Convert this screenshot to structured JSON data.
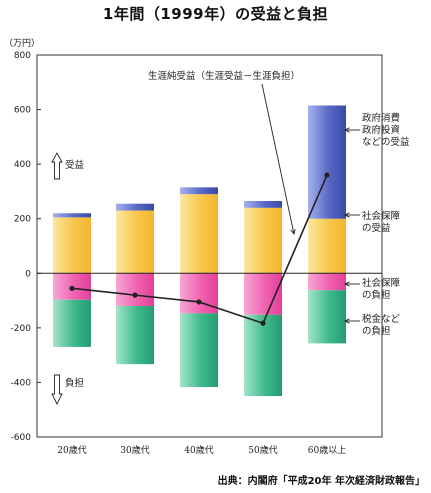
{
  "title": "1年間（1999年）の受益と負担",
  "source": "出典：内閣府「平成20年 年次経済財政報告」",
  "colors": {
    "govt_services": "#f7c64a",
    "social_security_benefit": "#5869c4",
    "social_security_burden": "#f062b0",
    "taxes": "#3fba8d",
    "net_line": "#222222"
  },
  "chart_data": {
    "type": "bar",
    "stacked": true,
    "unit": "（万円）",
    "ylim": [
      -600,
      800
    ],
    "yticks": [
      "800",
      "600",
      "400",
      "200",
      "0",
      "-200",
      "-400",
      "-600"
    ],
    "categories": [
      "20歳代",
      "30歳代",
      "40歳代",
      "50歳代",
      "60歳以上"
    ],
    "series": [
      {
        "name": "政府消費 政府投資 などの受益",
        "values": [
          205,
          230,
          290,
          240,
          200
        ]
      },
      {
        "name": "社会保障 の受益",
        "values": [
          15,
          25,
          25,
          25,
          415
        ]
      },
      {
        "name": "社会保障 の負担",
        "values": [
          -97,
          -120,
          -147,
          -152,
          -62
        ]
      },
      {
        "name": "税金など の負担",
        "values": [
          -173,
          -213,
          -270,
          -298,
          -195
        ]
      }
    ],
    "net": {
      "name": "生涯純受益（生涯受益－生涯負担）",
      "values": [
        -55,
        -80,
        -105,
        -183,
        360
      ]
    },
    "annotations": {
      "net_label": "生涯純受益（生涯受益－生涯負担）",
      "govt_label": [
        "政府消費",
        "政府投資",
        "などの受益"
      ],
      "ss_benefit_label": [
        "社会保障",
        "の受益"
      ],
      "ss_burden_label": [
        "社会保障",
        "の負担"
      ],
      "tax_label": [
        "税金など",
        "の負担"
      ],
      "up_label": "受益",
      "down_label": "負担"
    }
  }
}
